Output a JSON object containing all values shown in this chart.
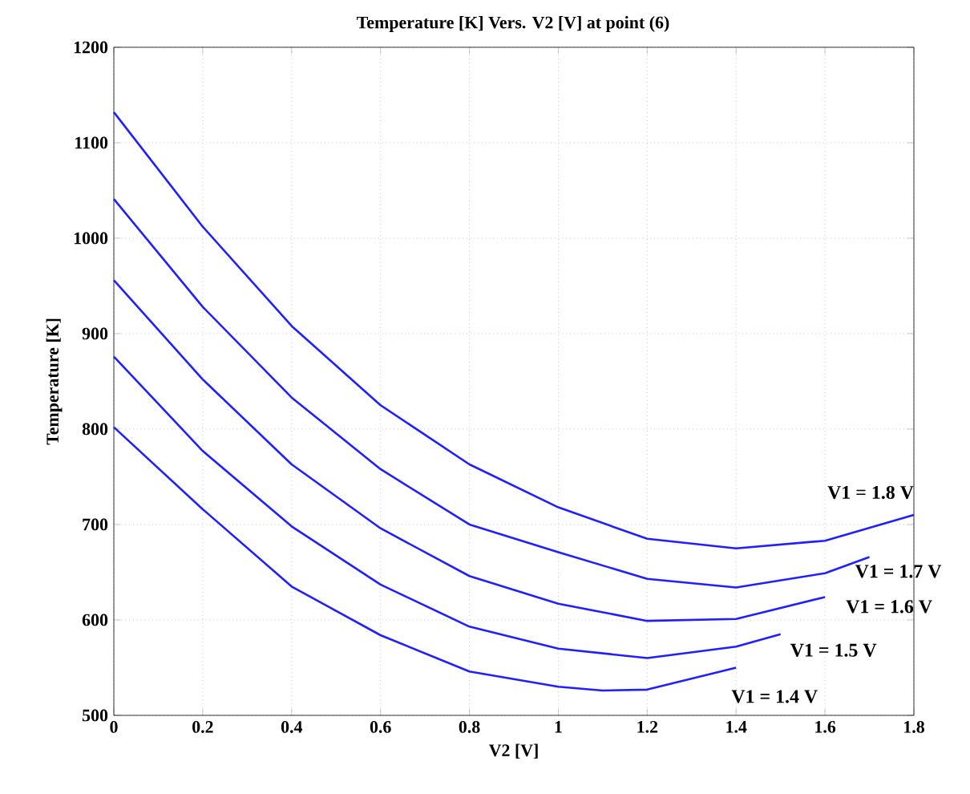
{
  "chart_data": {
    "type": "line",
    "title": "Temperature [K] Vers. V2  [V] at point (6)",
    "xlabel": "V2 [V]",
    "ylabel": "Temperature [K]",
    "xlim": [
      0,
      1.8
    ],
    "ylim": [
      500,
      1200
    ],
    "xticks": [
      0,
      0.2,
      0.4,
      0.6,
      0.8,
      1,
      1.2,
      1.4,
      1.6,
      1.8
    ],
    "yticks": [
      500,
      600,
      700,
      800,
      900,
      1000,
      1100,
      1200
    ],
    "grid": true,
    "series": [
      {
        "name": "V1 = 1.8 V",
        "color": "#1f1fff",
        "x": [
          0,
          0.2,
          0.4,
          0.6,
          0.8,
          1,
          1.2,
          1.4,
          1.6,
          1.8
        ],
        "values": [
          1132,
          1012,
          908,
          825,
          763,
          718,
          685,
          675,
          683,
          710
        ]
      },
      {
        "name": "V1 = 1.7 V",
        "color": "#1f1fff",
        "x": [
          0,
          0.2,
          0.4,
          0.6,
          0.8,
          1,
          1.2,
          1.4,
          1.6,
          1.7
        ],
        "values": [
          1041,
          928,
          833,
          758,
          700,
          671,
          643,
          634,
          649,
          666
        ]
      },
      {
        "name": "V1 = 1.6 V",
        "color": "#1f1fff",
        "x": [
          0,
          0.2,
          0.4,
          0.6,
          0.8,
          1,
          1.2,
          1.4,
          1.6
        ],
        "values": [
          956,
          852,
          763,
          696,
          646,
          617,
          599,
          601,
          624
        ]
      },
      {
        "name": "V1 = 1.5 V",
        "color": "#1f1fff",
        "x": [
          0,
          0.2,
          0.4,
          0.6,
          0.8,
          1,
          1.2,
          1.4,
          1.5
        ],
        "values": [
          876,
          777,
          698,
          637,
          593,
          570,
          560,
          572,
          585
        ]
      },
      {
        "name": "V1 = 1.4 V",
        "color": "#1f1fff",
        "x": [
          0,
          0.2,
          0.4,
          0.6,
          0.8,
          1,
          1.1,
          1.2,
          1.4
        ],
        "values": [
          802,
          716,
          635,
          584,
          546,
          530,
          526,
          527,
          550
        ]
      }
    ]
  }
}
